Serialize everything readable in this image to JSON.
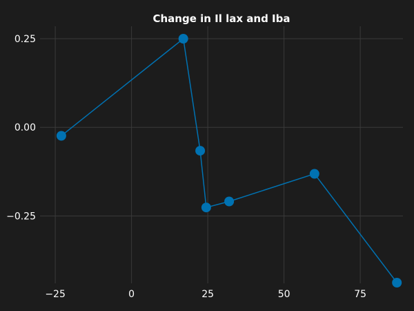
{
  "chart_data": {
    "type": "line",
    "title": "Change in Il lax and Iba",
    "xlabel": "",
    "ylabel": "",
    "xlim": [
      -30,
      89
    ],
    "ylim": [
      -0.44,
      0.285
    ],
    "x_ticks": [
      -25,
      0,
      25,
      50,
      75
    ],
    "x_tick_labels": [
      "−25",
      "0",
      "25",
      "50",
      "75"
    ],
    "y_ticks": [
      0.25,
      0.0,
      -0.25
    ],
    "y_tick_labels": [
      "0.25",
      "0.00",
      "−0.25"
    ],
    "grid": true,
    "series": [
      {
        "color": "#0072b2",
        "points": [
          {
            "x": -23,
            "y": -0.024
          },
          {
            "x": 17,
            "y": 0.25
          },
          {
            "x": 22.5,
            "y": -0.066
          },
          {
            "x": 24.5,
            "y": -0.226
          },
          {
            "x": 32,
            "y": -0.209
          },
          {
            "x": 60,
            "y": -0.131
          },
          {
            "x": 87,
            "y": -0.438
          }
        ]
      }
    ]
  },
  "colors": {
    "background": "#1c1c1c",
    "grid": "#3a3a3a",
    "text": "#ffffff",
    "series": "#0072b2"
  }
}
